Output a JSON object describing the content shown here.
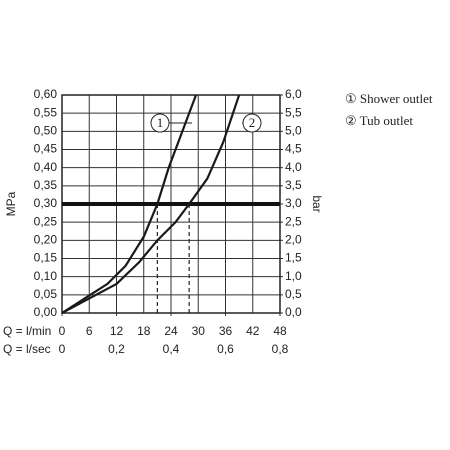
{
  "chart_data": {
    "type": "line",
    "y_label": "MPa",
    "y2_label": "bar",
    "x_label": "Q = l/min",
    "x2_label": "Q = l/sec",
    "xlim": [
      0,
      48
    ],
    "xticks": [
      0,
      6,
      12,
      18,
      24,
      30,
      36,
      42,
      48
    ],
    "x2lim": [
      0,
      0.8
    ],
    "x2ticks": [
      0,
      {
        "value": 0.2,
        "label": "0,2"
      },
      {
        "value": 0.4,
        "label": "0,4"
      },
      {
        "value": 0.6,
        "label": "0,6"
      },
      {
        "value": 0.8,
        "label": "0,8"
      }
    ],
    "ylim": [
      0,
      0.6
    ],
    "yticks": [
      {
        "value": 0,
        "label": "0,00"
      },
      {
        "value": 0.05,
        "label": "0,05"
      },
      {
        "value": 0.1,
        "label": "0,10"
      },
      {
        "value": 0.15,
        "label": "0,15"
      },
      {
        "value": 0.2,
        "label": "0,20"
      },
      {
        "value": 0.25,
        "label": "0,25"
      },
      {
        "value": 0.3,
        "label": "0,30"
      },
      {
        "value": 0.35,
        "label": "0,35"
      },
      {
        "value": 0.4,
        "label": "0,40"
      },
      {
        "value": 0.45,
        "label": "0,45"
      },
      {
        "value": 0.5,
        "label": "0,50"
      },
      {
        "value": 0.55,
        "label": "0,55"
      },
      {
        "value": 0.6,
        "label": "0,60"
      }
    ],
    "y2lim": [
      0,
      6
    ],
    "y2ticks": [
      {
        "value": 0,
        "label": "0,0"
      },
      {
        "value": 0.5,
        "label": "0,5"
      },
      {
        "value": 1,
        "label": "1,0"
      },
      {
        "value": 1.5,
        "label": "1,5"
      },
      {
        "value": 2,
        "label": "2,0"
      },
      {
        "value": 2.5,
        "label": "2,5"
      },
      {
        "value": 3,
        "label": "3,0"
      },
      {
        "value": 3.5,
        "label": "3,5"
      },
      {
        "value": 4,
        "label": "4,0"
      },
      {
        "value": 4.5,
        "label": "4,5"
      },
      {
        "value": 5,
        "label": "5,0"
      },
      {
        "value": 5.5,
        "label": "5,5"
      },
      {
        "value": 6,
        "label": "6,0"
      }
    ],
    "grid": true,
    "hline": 0.3,
    "vlines": [
      21,
      28
    ],
    "series": [
      {
        "name": "① Shower outlet",
        "callout": "1",
        "color": "#1a1a1a",
        "x": [
          0,
          5,
          10,
          14,
          18,
          21,
          23.5,
          26.5,
          29.5
        ],
        "values": [
          0,
          0.04,
          0.08,
          0.13,
          0.21,
          0.3,
          0.4,
          0.5,
          0.6
        ]
      },
      {
        "name": "② Tub outlet",
        "callout": "2",
        "color": "#1a1a1a",
        "x": [
          0,
          6,
          12,
          17,
          21,
          25,
          28,
          32,
          35.5,
          39
        ],
        "values": [
          0,
          0.04,
          0.08,
          0.14,
          0.2,
          0.25,
          0.3,
          0.37,
          0.47,
          0.6
        ]
      }
    ]
  }
}
